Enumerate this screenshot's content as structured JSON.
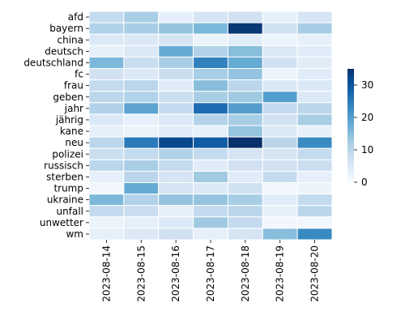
{
  "chart_data": {
    "type": "heatmap",
    "title": "",
    "xlabel": "",
    "ylabel": "",
    "x_categories": [
      "2023-08-14",
      "2023-08-15",
      "2023-08-16",
      "2023-08-17",
      "2023-08-18",
      "2023-08-19",
      "2023-08-20"
    ],
    "y_categories": [
      "afd",
      "bayern",
      "china",
      "deutsch",
      "deutschland",
      "fc",
      "frau",
      "geben",
      "jahr",
      "jährig",
      "kane",
      "neu",
      "polizei",
      "russisch",
      "sterben",
      "trump",
      "ukraine",
      "unfall",
      "unwetter",
      "wm"
    ],
    "values": [
      [
        9,
        12,
        3,
        6,
        7,
        3,
        6
      ],
      [
        11,
        12,
        14,
        16,
        34,
        7,
        12
      ],
      [
        5,
        5,
        6,
        2,
        4,
        2,
        3
      ],
      [
        3,
        5,
        18,
        11,
        15,
        5,
        4
      ],
      [
        16,
        8,
        12,
        24,
        18,
        7,
        4
      ],
      [
        7,
        5,
        8,
        12,
        14,
        2,
        4
      ],
      [
        9,
        10,
        4,
        15,
        10,
        5,
        5
      ],
      [
        10,
        11,
        8,
        12,
        13,
        20,
        5
      ],
      [
        11,
        19,
        9,
        27,
        20,
        9,
        10
      ],
      [
        5,
        3,
        5,
        11,
        12,
        7,
        12
      ],
      [
        3,
        2,
        4,
        3,
        14,
        5,
        3
      ],
      [
        10,
        25,
        32,
        29,
        35,
        10,
        23
      ],
      [
        8,
        9,
        11,
        9,
        6,
        6,
        9
      ],
      [
        10,
        12,
        9,
        4,
        7,
        7,
        8
      ],
      [
        3,
        10,
        6,
        13,
        4,
        9,
        3
      ],
      [
        1,
        18,
        6,
        5,
        7,
        1,
        2
      ],
      [
        16,
        11,
        14,
        14,
        12,
        4,
        9
      ],
      [
        9,
        8,
        3,
        9,
        10,
        3,
        10
      ],
      [
        2,
        3,
        5,
        13,
        9,
        1,
        1
      ],
      [
        3,
        5,
        7,
        3,
        6,
        15,
        23
      ]
    ],
    "colorbar": {
      "min": 0,
      "max": 35,
      "ticks": [
        0,
        10,
        20,
        30
      ]
    },
    "colormap": "Blues",
    "colors": {
      "low": "#f7fbff",
      "high": "#08306b",
      "grid": "#ffffff"
    }
  }
}
